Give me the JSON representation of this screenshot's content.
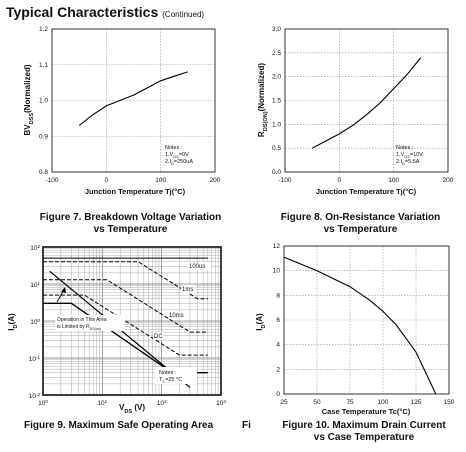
{
  "header": {
    "title": "Typical Characteristics",
    "subtitle": "(Continued)"
  },
  "chart_data": [
    {
      "id": "fig7",
      "type": "line",
      "caption_line1": "Figure 7. Breakdown Voltage Variation",
      "caption_line2": "vs Temperature",
      "xlabel": "Junction Temperature Tj(°C)",
      "ylabel_main": "BV",
      "ylabel_sub": "DSS",
      "ylabel_tail": "(Normalized)",
      "xlim": [
        -100,
        200
      ],
      "ylim": [
        0.8,
        1.2
      ],
      "xticks": [
        "-100",
        "0",
        "100",
        "200"
      ],
      "yticks": [
        "0.8",
        "0.9",
        "1.0",
        "1.1",
        "1.2"
      ],
      "notes": [
        "Notes :",
        "1.V",
        "GS",
        "=0V",
        "2.I",
        "D",
        "=250uA"
      ],
      "series": [
        {
          "x": [
            -50,
            -25,
            0,
            25,
            50,
            75,
            100,
            125,
            150
          ],
          "y": [
            0.93,
            0.96,
            0.985,
            1.0,
            1.015,
            1.035,
            1.055,
            1.068,
            1.08
          ]
        }
      ]
    },
    {
      "id": "fig8",
      "type": "line",
      "caption_line1": "Figure 8. On-Resistance Variation",
      "caption_line2": "vs Temperature",
      "xlabel": "Junction Temperature Tj(°C)",
      "ylabel_main": "R",
      "ylabel_sub": "DS(ON)",
      "ylabel_tail": "(Normalized)",
      "xlim": [
        -100,
        200
      ],
      "ylim": [
        0.0,
        3.0
      ],
      "xticks": [
        "-100",
        "0",
        "100",
        "200"
      ],
      "yticks": [
        "0.0",
        "0.5",
        "1.0",
        "1.5",
        "2.0",
        "2.5",
        "3.0"
      ],
      "notes": [
        "Notes :",
        "1.V",
        "GS",
        "=10V",
        "2.I",
        "D",
        "=5.5A"
      ],
      "series": [
        {
          "x": [
            -50,
            -25,
            0,
            25,
            50,
            75,
            100,
            125,
            150
          ],
          "y": [
            0.5,
            0.65,
            0.8,
            0.98,
            1.2,
            1.45,
            1.75,
            2.05,
            2.4
          ]
        }
      ]
    },
    {
      "id": "fig9",
      "type": "line",
      "scale": "log-log",
      "caption_line1": "Figure 9. Maximum Safe Operating Area",
      "caption_cut": "Fi",
      "xlabel_main": "V",
      "xlabel_sub": "DS",
      "xlabel_tail": " (V)",
      "ylabel_main": "I",
      "ylabel_sub": "D",
      "ylabel_tail": "(A)",
      "xlim": [
        1,
        1000
      ],
      "ylim": [
        0.01,
        100
      ],
      "xticks": [
        "10",
        "10",
        "10",
        "10"
      ],
      "xtick_exp": [
        "0",
        "1",
        "2",
        "3"
      ],
      "yticks": [
        "10",
        "10",
        "10",
        "10",
        "10"
      ],
      "ytick_exp": [
        "-2",
        "-1",
        "0",
        "1",
        "2"
      ],
      "annotation_lines": [
        "Operation in This Area",
        "is Limited by R",
        "DS(on)"
      ],
      "curve_labels": [
        "100us",
        "1ms",
        "10ms",
        "DC"
      ],
      "notes": [
        "Notes :",
        "T",
        "C",
        "=25 °C"
      ],
      "series": [
        {
          "name": "100us",
          "x": [
            1,
            40,
            400,
            600
          ],
          "y": [
            40,
            40,
            4,
            4
          ]
        },
        {
          "name": "1ms",
          "x": [
            1,
            12,
            300,
            600
          ],
          "y": [
            13,
            13,
            0.5,
            0.5
          ]
        },
        {
          "name": "10ms",
          "x": [
            1,
            5,
            200,
            600
          ],
          "y": [
            5,
            5,
            0.12,
            0.12
          ]
        },
        {
          "name": "DC",
          "x": [
            1,
            3,
            150,
            600
          ],
          "y": [
            3,
            3,
            0.04,
            0.04
          ]
        },
        {
          "name": "limit",
          "x": [
            1,
            600
          ],
          "y": [
            50,
            50
          ]
        }
      ]
    },
    {
      "id": "fig10",
      "type": "line",
      "caption_line1": "Figure 10. Maximum Drain Current",
      "caption_line2": "vs Case Temperature",
      "xlabel": "Case Temperature Tc(°C)",
      "ylabel_main": "I",
      "ylabel_sub": "D",
      "ylabel_tail": "(A)",
      "xlim": [
        25,
        150
      ],
      "ylim": [
        0,
        12
      ],
      "xticks": [
        "25",
        "50",
        "75",
        "100",
        "125",
        "150"
      ],
      "yticks": [
        "0",
        "2",
        "4",
        "6",
        "8",
        "10",
        "12"
      ],
      "series": [
        {
          "x": [
            25,
            50,
            75,
            90,
            100,
            110,
            125,
            140
          ],
          "y": [
            11.1,
            10.0,
            8.7,
            7.6,
            6.7,
            5.6,
            3.4,
            0
          ]
        }
      ]
    }
  ]
}
